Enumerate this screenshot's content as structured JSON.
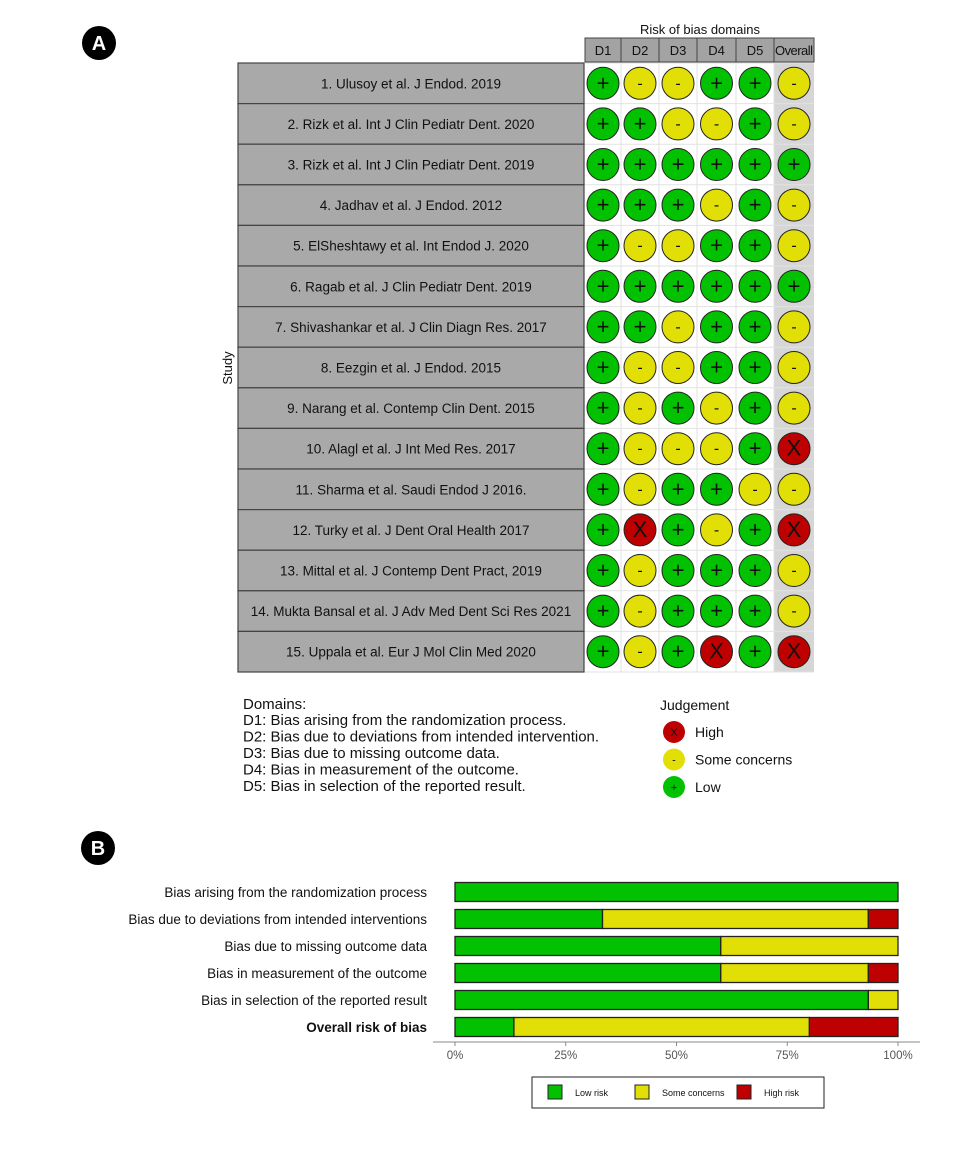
{
  "panels": {
    "a_label": "A",
    "b_label": "B"
  },
  "colors": {
    "low": "#02C100",
    "some": "#E2DF07",
    "high": "#BF0000",
    "study_cell": "#A9A9A9",
    "header_cell": "#A3A3A3",
    "overall_bg": "#D6D6D6"
  },
  "symbols": {
    "low": "+",
    "some": "-",
    "high": "X"
  },
  "chart_data": [
    {
      "type": "table",
      "title": "Risk of bias domains",
      "ylabel": "Study",
      "columns": [
        "D1",
        "D2",
        "D3",
        "D4",
        "D5",
        "Overall"
      ],
      "studies": [
        {
          "name": "1. Ulusoy et al. J Endod. 2019",
          "judgements": [
            "low",
            "some",
            "some",
            "low",
            "low",
            "some"
          ]
        },
        {
          "name": "2. Rizk et al. Int J Clin Pediatr Dent. 2020",
          "judgements": [
            "low",
            "low",
            "some",
            "some",
            "low",
            "some"
          ]
        },
        {
          "name": "3. Rizk et al. Int J Clin Pediatr Dent. 2019",
          "judgements": [
            "low",
            "low",
            "low",
            "low",
            "low",
            "low"
          ]
        },
        {
          "name": "4. Jadhav et al. J Endod. 2012",
          "judgements": [
            "low",
            "low",
            "low",
            "some",
            "low",
            "some"
          ]
        },
        {
          "name": "5. ElSheshtawy et al. Int Endod J. 2020",
          "judgements": [
            "low",
            "some",
            "some",
            "low",
            "low",
            "some"
          ]
        },
        {
          "name": "6. Ragab et al. J Clin Pediatr Dent. 2019",
          "judgements": [
            "low",
            "low",
            "low",
            "low",
            "low",
            "low"
          ]
        },
        {
          "name": "7. Shivashankar et al. J Clin Diagn Res. 2017",
          "judgements": [
            "low",
            "low",
            "some",
            "low",
            "low",
            "some"
          ]
        },
        {
          "name": "8. Eezgin et al. J Endod. 2015",
          "judgements": [
            "low",
            "some",
            "some",
            "low",
            "low",
            "some"
          ]
        },
        {
          "name": "9. Narang et al. Contemp Clin Dent. 2015",
          "judgements": [
            "low",
            "some",
            "low",
            "some",
            "low",
            "some"
          ]
        },
        {
          "name": "10. Alagl et al. J Int Med Res. 2017",
          "judgements": [
            "low",
            "some",
            "some",
            "some",
            "low",
            "high"
          ]
        },
        {
          "name": "11. Sharma et al. Saudi Endod J 2016.",
          "judgements": [
            "low",
            "some",
            "low",
            "low",
            "some",
            "some"
          ]
        },
        {
          "name": "12. Turky et al. J Dent Oral Health 2017",
          "judgements": [
            "low",
            "high",
            "low",
            "some",
            "low",
            "high"
          ]
        },
        {
          "name": "13. Mittal et al. J Contemp Dent Pract, 2019",
          "judgements": [
            "low",
            "some",
            "low",
            "low",
            "low",
            "some"
          ]
        },
        {
          "name": "14. Mukta Bansal et al. J Adv Med Dent Sci Res 2021",
          "judgements": [
            "low",
            "some",
            "low",
            "low",
            "low",
            "some"
          ]
        },
        {
          "name": "15. Uppala et al. Eur J Mol Clin Med 2020",
          "judgements": [
            "low",
            "some",
            "low",
            "high",
            "low",
            "high"
          ]
        }
      ],
      "domains_title": "Domains:",
      "domains": [
        "D1: Bias arising from the randomization process.",
        "D2: Bias due to deviations from intended intervention.",
        "D3: Bias due to missing outcome data.",
        "D4: Bias in measurement of the outcome.",
        "D5: Bias in selection of the reported result."
      ],
      "legend_title": "Judgement",
      "legend": [
        {
          "key": "high",
          "label": "High"
        },
        {
          "key": "some",
          "label": "Some concerns"
        },
        {
          "key": "low",
          "label": "Low"
        }
      ]
    },
    {
      "type": "bar",
      "stacked": true,
      "orientation": "horizontal",
      "categories": [
        "Bias arising from the randomization process",
        "Bias due to deviations from intended interventions",
        "Bias due to missing outcome data",
        "Bias in measurement of the outcome",
        "Bias in selection of the reported result",
        "Overall risk of bias"
      ],
      "bold_category": "Overall risk of bias",
      "series": [
        {
          "name": "Low risk",
          "key": "low",
          "values": [
            100,
            33.3,
            60,
            60,
            93.3,
            13.3
          ]
        },
        {
          "name": "Some concerns",
          "key": "some",
          "values": [
            0,
            60,
            40,
            33.3,
            6.7,
            66.7
          ]
        },
        {
          "name": "High risk",
          "key": "high",
          "values": [
            0,
            6.7,
            0,
            6.7,
            0,
            20
          ]
        }
      ],
      "xlim": [
        0,
        100
      ],
      "xticks": [
        "0%",
        "25%",
        "50%",
        "75%",
        "100%"
      ],
      "legend_placement": "bottom"
    }
  ]
}
